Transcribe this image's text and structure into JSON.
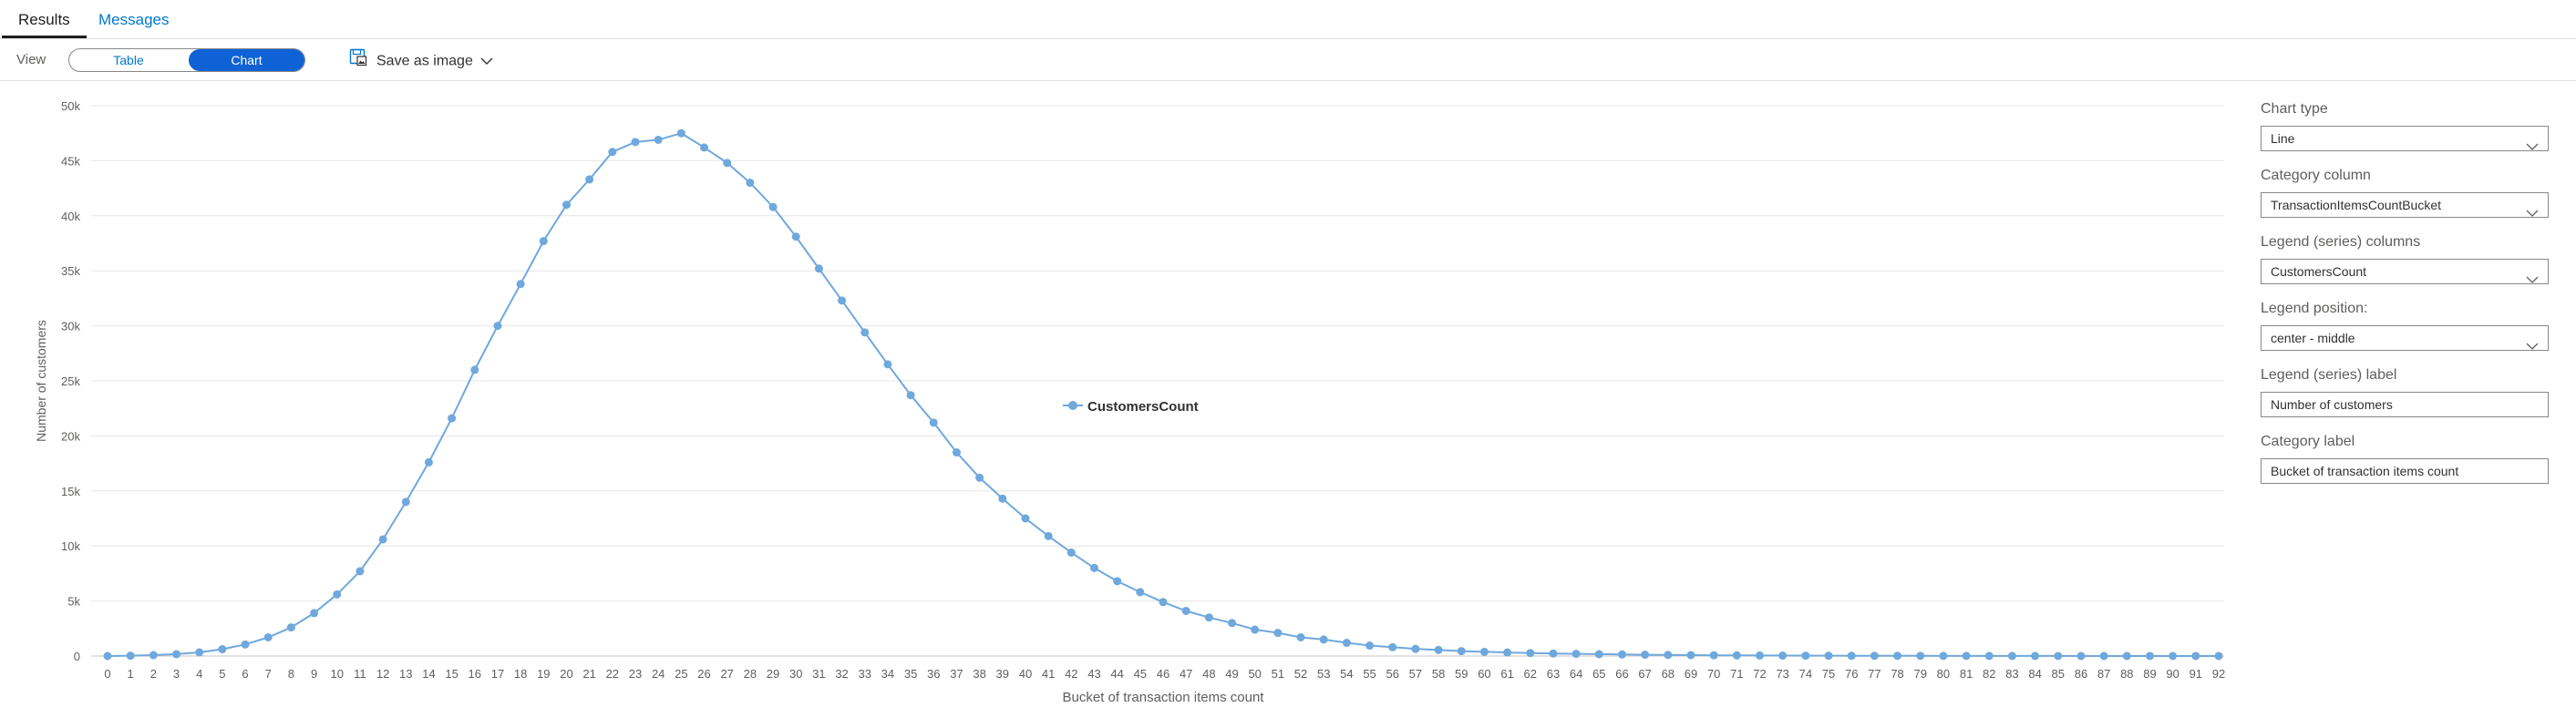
{
  "tabs": {
    "results": "Results",
    "messages": "Messages"
  },
  "toolbar": {
    "view_label": "View",
    "view_options": [
      "Table",
      "Chart"
    ],
    "selected_view": "Chart",
    "save_label": "Save as image"
  },
  "panel": {
    "chart_type_label": "Chart type",
    "chart_type_value": "Line",
    "category_column_label": "Category column",
    "category_column_value": "TransactionItemsCountBucket",
    "legend_columns_label": "Legend (series) columns",
    "legend_columns_value": "CustomersCount",
    "legend_position_label": "Legend position:",
    "legend_position_value": "center - middle",
    "legend_label_label": "Legend (series) label",
    "legend_label_value": "Number of customers",
    "category_label_label": "Category label",
    "category_label_value": "Bucket of transaction items count"
  },
  "colors": {
    "accent": "#0f62d6",
    "link": "#0078d4",
    "series": "#6fa8dc",
    "grid": "#e5e5e5"
  },
  "chart_data": {
    "type": "line",
    "xlabel": "Bucket of transaction items count",
    "ylabel": "Number of customers",
    "ylim": [
      0,
      50000
    ],
    "yticks": [
      0,
      5000,
      10000,
      15000,
      20000,
      25000,
      30000,
      35000,
      40000,
      45000,
      50000
    ],
    "ytick_labels": [
      "0",
      "5k",
      "10k",
      "15k",
      "20k",
      "25k",
      "30k",
      "35k",
      "40k",
      "45k",
      "50k"
    ],
    "grid": true,
    "legend_position": "center-middle",
    "categories": [
      0,
      1,
      2,
      3,
      4,
      5,
      6,
      7,
      8,
      9,
      10,
      11,
      12,
      13,
      14,
      15,
      16,
      17,
      18,
      19,
      20,
      21,
      22,
      23,
      24,
      25,
      26,
      27,
      28,
      29,
      30,
      31,
      32,
      33,
      34,
      35,
      36,
      37,
      38,
      39,
      40,
      41,
      42,
      43,
      44,
      45,
      46,
      47,
      48,
      49,
      50,
      51,
      52,
      53,
      54,
      55,
      56,
      57,
      58,
      59,
      60,
      61,
      62,
      63,
      64,
      65,
      66,
      67,
      68,
      69,
      70,
      71,
      72,
      73,
      74,
      75,
      76,
      77,
      78,
      79,
      80,
      81,
      82,
      83,
      84,
      85,
      86,
      87,
      88,
      89,
      90,
      91,
      92
    ],
    "series": [
      {
        "name": "CustomersCount",
        "values": [
          0,
          30,
          80,
          170,
          330,
          620,
          1050,
          1700,
          2600,
          3900,
          5600,
          7700,
          10600,
          14000,
          17600,
          21600,
          26000,
          30000,
          33800,
          37700,
          41000,
          43300,
          45800,
          46700,
          46900,
          47500,
          46200,
          44800,
          43000,
          40800,
          38100,
          35200,
          32300,
          29400,
          26500,
          23700,
          21200,
          18500,
          16200,
          14300,
          12500,
          10900,
          9400,
          8000,
          6800,
          5800,
          4900,
          4100,
          3500,
          3000,
          2400,
          2100,
          1700,
          1500,
          1200,
          950,
          800,
          650,
          550,
          450,
          380,
          320,
          270,
          230,
          200,
          170,
          140,
          120,
          100,
          85,
          70,
          60,
          50,
          40,
          35,
          30,
          25,
          20,
          18,
          15,
          12,
          10,
          8,
          7,
          6,
          5,
          4,
          3,
          3,
          2,
          2,
          1,
          1
        ]
      }
    ]
  }
}
